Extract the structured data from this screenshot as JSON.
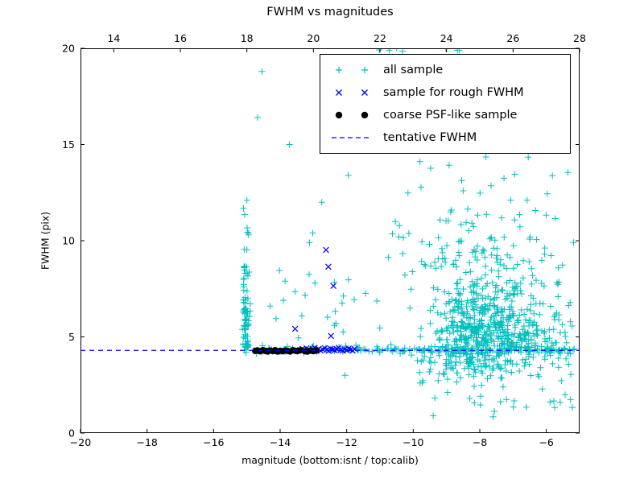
{
  "legend": {
    "entries": [
      {
        "label": "all sample",
        "marker": "plus",
        "color": "#00bfbf"
      },
      {
        "label": "sample for rough FWHM",
        "marker": "x",
        "color": "#0000ff"
      },
      {
        "label": "coarse PSF-like sample",
        "marker": "dot",
        "color": "#000000"
      },
      {
        "label": "tentative FWHM",
        "marker": "dash",
        "color": "#0000ff"
      }
    ]
  },
  "chart_data": {
    "type": "scatter",
    "title": "FWHM vs magnitudes",
    "xlabel": "magnitude (bottom:isnt / top:calib)",
    "ylabel": "FWHM (pix)",
    "x_axis_bottom": {
      "name": "isnt magnitude",
      "range": [
        -20,
        -5
      ],
      "ticks": [
        -20,
        -18,
        -16,
        -14,
        -12,
        -10,
        -8,
        -6
      ],
      "tick_labels": [
        "−20",
        "−18",
        "−16",
        "−14",
        "−12",
        "−10",
        "−8",
        "−6"
      ]
    },
    "x_axis_top": {
      "name": "calib magnitude",
      "range": [
        13,
        28
      ],
      "ticks": [
        14,
        16,
        18,
        20,
        22,
        24,
        26,
        28
      ],
      "tick_labels": [
        "14",
        "16",
        "18",
        "20",
        "22",
        "24",
        "26",
        "28"
      ]
    },
    "y_axis": {
      "name": "FWHM (pix)",
      "range": [
        0,
        20
      ],
      "ticks": [
        0,
        5,
        10,
        15,
        20
      ],
      "tick_labels": [
        "0",
        "5",
        "10",
        "15",
        "20"
      ]
    },
    "tentative_fwhm": 4.3,
    "seed": 42,
    "series": [
      {
        "name": "all sample",
        "marker": "plus",
        "color": "#00bfbf",
        "points": [
          [
            -14.55,
            18.8
          ],
          [
            -14.68,
            16.4
          ],
          [
            -13.72,
            15.0
          ],
          [
            -14.02,
            8.45
          ],
          [
            -13.85,
            7.9
          ],
          [
            -14.3,
            6.6
          ],
          [
            -13.55,
            7.35
          ],
          [
            -13.12,
            9.9
          ],
          [
            -13.02,
            10.4
          ],
          [
            -13.35,
            6.1
          ],
          [
            -14.12,
            5.95
          ],
          [
            -13.9,
            6.9
          ],
          [
            -10.72,
            19.9
          ],
          [
            -10.62,
            19.55
          ],
          [
            -10.5,
            20.0
          ],
          [
            -10.42,
            19.3
          ],
          [
            -10.32,
            19.85
          ],
          [
            -8.62,
            19.9
          ],
          [
            -8.52,
            19.5
          ],
          [
            -9.02,
            20.0
          ],
          [
            -5.62,
            7.85
          ],
          [
            -5.55,
            4.3
          ],
          [
            -5.3,
            4.35
          ],
          [
            -5.75,
            5.9
          ],
          [
            -6.05,
            9.3
          ],
          [
            -11.45,
            16.9
          ],
          [
            -12.42,
            16.7
          ],
          [
            -11.95,
            13.4
          ],
          [
            -12.75,
            12.0
          ],
          [
            -13.45,
            4.95
          ],
          [
            -12.05,
            3.0
          ],
          [
            -9.4,
            0.9
          ],
          [
            -7.6,
            0.85
          ],
          [
            -6.6,
            1.35
          ],
          [
            -8.3,
            1.8
          ],
          [
            -15.0,
            12.1
          ],
          [
            -14.95,
            10.3
          ],
          [
            -15.08,
            9.55
          ]
        ],
        "clusters": [
          {
            "n": 520,
            "x": [
              "normal",
              -7.95,
              0.85
            ],
            "y": [
              "normal",
              5.1,
              1.2
            ],
            "clip": [
              -10.8,
              -5.15,
              2.6,
              11.5
            ]
          },
          {
            "n": 170,
            "x": [
              "normal",
              -7.7,
              1.15
            ],
            "y": [
              "normal",
              7.8,
              2.3
            ],
            "clip": [
              -10.8,
              -5.15,
              3.0,
              14.8
            ]
          },
          {
            "n": 170,
            "x": [
              "uniform",
              -15.05,
              -5.1
            ],
            "y": [
              "normal",
              4.33,
              0.1
            ]
          },
          {
            "n": 55,
            "x": [
              "normal",
              -15.03,
              0.055
            ],
            "y": [
              "uniform",
              4.25,
              6.6
            ]
          },
          {
            "n": 22,
            "x": [
              "normal",
              -15.03,
              0.06
            ],
            "y": [
              "uniform",
              6.6,
              8.7
            ]
          },
          {
            "n": 6,
            "x": [
              "normal",
              -15.0,
              0.08
            ],
            "y": [
              "uniform",
              8.8,
              12.3
            ]
          },
          {
            "n": 40,
            "x": [
              "uniform",
              -10.3,
              -5.2
            ],
            "y": [
              "uniform",
              1.1,
              3.9
            ]
          },
          {
            "n": 26,
            "x": [
              "uniform",
              -12.6,
              -6.0
            ],
            "y": [
              "uniform",
              14.8,
              20.0
            ]
          },
          {
            "n": 16,
            "x": [
              "uniform",
              -13.3,
              -10.9
            ],
            "y": [
              "uniform",
              4.9,
              8.6
            ]
          },
          {
            "n": 40,
            "x": [
              "uniform",
              -11.0,
              -5.3
            ],
            "y": [
              "uniform",
              8.5,
              14.5
            ]
          },
          {
            "n": 60,
            "x": [
              "uniform",
              -6.9,
              -5.2
            ],
            "y": [
              "normal",
              4.8,
              1.0
            ],
            "clip": [
              -6.9,
              -5.15,
              2.2,
              7.5
            ]
          }
        ]
      },
      {
        "name": "sample for rough FWHM",
        "marker": "x",
        "color": "#0000ff",
        "points": [
          [
            -13.4,
            4.32
          ],
          [
            -13.33,
            4.38
          ],
          [
            -13.27,
            4.3
          ],
          [
            -13.21,
            4.41
          ],
          [
            -13.15,
            4.35
          ],
          [
            -13.08,
            4.28
          ],
          [
            -13.02,
            4.36
          ],
          [
            -12.96,
            4.43
          ],
          [
            -12.9,
            4.31
          ],
          [
            -12.84,
            4.38
          ],
          [
            -12.78,
            4.29
          ],
          [
            -12.72,
            4.35
          ],
          [
            -12.66,
            4.42
          ],
          [
            -12.6,
            4.33
          ],
          [
            -12.54,
            4.27
          ],
          [
            -12.48,
            4.39
          ],
          [
            -12.42,
            4.34
          ],
          [
            -12.36,
            4.3
          ],
          [
            -12.3,
            4.37
          ],
          [
            -12.24,
            4.44
          ],
          [
            -12.18,
            4.32
          ],
          [
            -12.12,
            4.28
          ],
          [
            -12.06,
            4.36
          ],
          [
            -12.0,
            4.31
          ],
          [
            -11.94,
            4.4
          ],
          [
            -11.88,
            4.34
          ],
          [
            -11.82,
            4.29
          ],
          [
            -11.76,
            4.37
          ],
          [
            -13.55,
            5.42
          ],
          [
            -12.47,
            5.05
          ],
          [
            -12.62,
            9.52
          ],
          [
            -12.55,
            8.65
          ],
          [
            -12.4,
            7.65
          ]
        ]
      },
      {
        "name": "coarse PSF-like sample",
        "marker": "dot",
        "color": "#000000",
        "points": [
          [
            -14.75,
            4.27
          ],
          [
            -14.68,
            4.3
          ],
          [
            -14.6,
            4.25
          ],
          [
            -14.52,
            4.31
          ],
          [
            -14.45,
            4.27
          ],
          [
            -14.38,
            4.24
          ],
          [
            -14.3,
            4.29
          ],
          [
            -14.22,
            4.26
          ],
          [
            -14.15,
            4.31
          ],
          [
            -14.08,
            4.24
          ],
          [
            -14.0,
            4.28
          ],
          [
            -13.92,
            4.25
          ],
          [
            -13.85,
            4.3
          ],
          [
            -13.78,
            4.27
          ],
          [
            -13.7,
            4.24
          ],
          [
            -13.62,
            4.31
          ],
          [
            -13.55,
            4.28
          ],
          [
            -13.48,
            4.26
          ],
          [
            -13.4,
            4.3
          ],
          [
            -13.25,
            4.25
          ],
          [
            -13.18,
            4.24
          ],
          [
            -13.1,
            4.28
          ],
          [
            -13.0,
            4.26
          ],
          [
            -12.92,
            4.29
          ]
        ]
      },
      {
        "name": "tentative FWHM",
        "marker": "dash",
        "color": "#0000ff",
        "hline": 4.3
      }
    ]
  }
}
